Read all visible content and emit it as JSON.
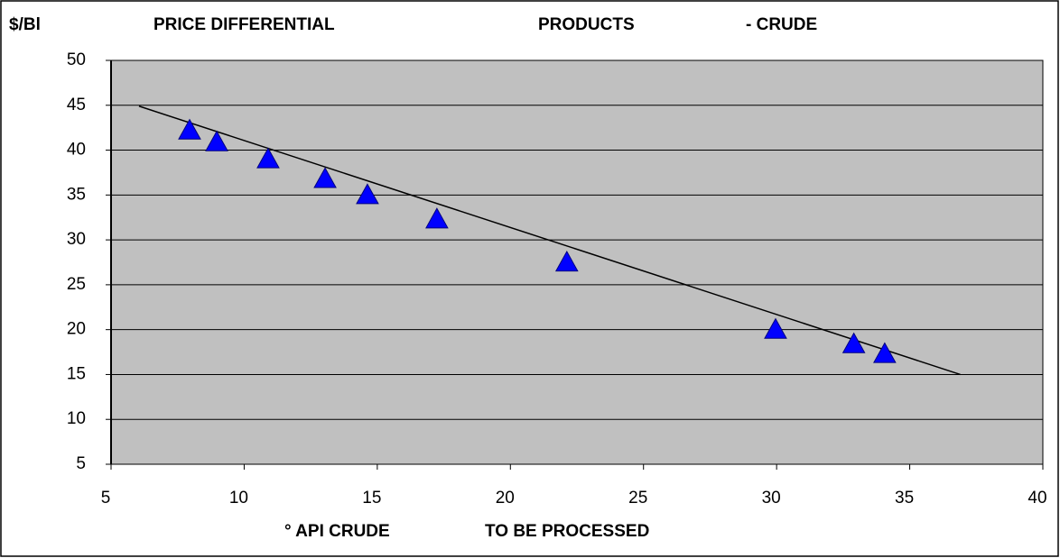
{
  "chart_data": {
    "type": "scatter",
    "ylabel": "$/Bl",
    "title_parts": [
      "PRICE DIFFERENTIAL",
      "PRODUCTS",
      "- CRUDE"
    ],
    "xlabel_parts": [
      "° API CRUDE",
      "TO BE PROCESSED"
    ],
    "x": [
      7.95,
      8.97,
      10.9,
      13.04,
      14.63,
      17.24,
      22.12,
      29.96,
      32.9,
      34.06
    ],
    "values": [
      42.2,
      40.9,
      39,
      36.8,
      35,
      32.3,
      27.5,
      20,
      18.4,
      17.3
    ],
    "color": "#0000ff",
    "trendline": {
      "x": [
        6.05,
        36.9
      ],
      "values": [
        44.9,
        15
      ],
      "color": "#000000"
    },
    "xlim": [
      5,
      40
    ],
    "xticks": [
      5,
      10,
      15,
      20,
      25,
      30,
      35,
      40
    ],
    "ylim": [
      5,
      50
    ],
    "yticks": [
      5,
      10,
      15,
      20,
      25,
      30,
      35,
      40,
      45,
      50
    ],
    "grid": true
  }
}
